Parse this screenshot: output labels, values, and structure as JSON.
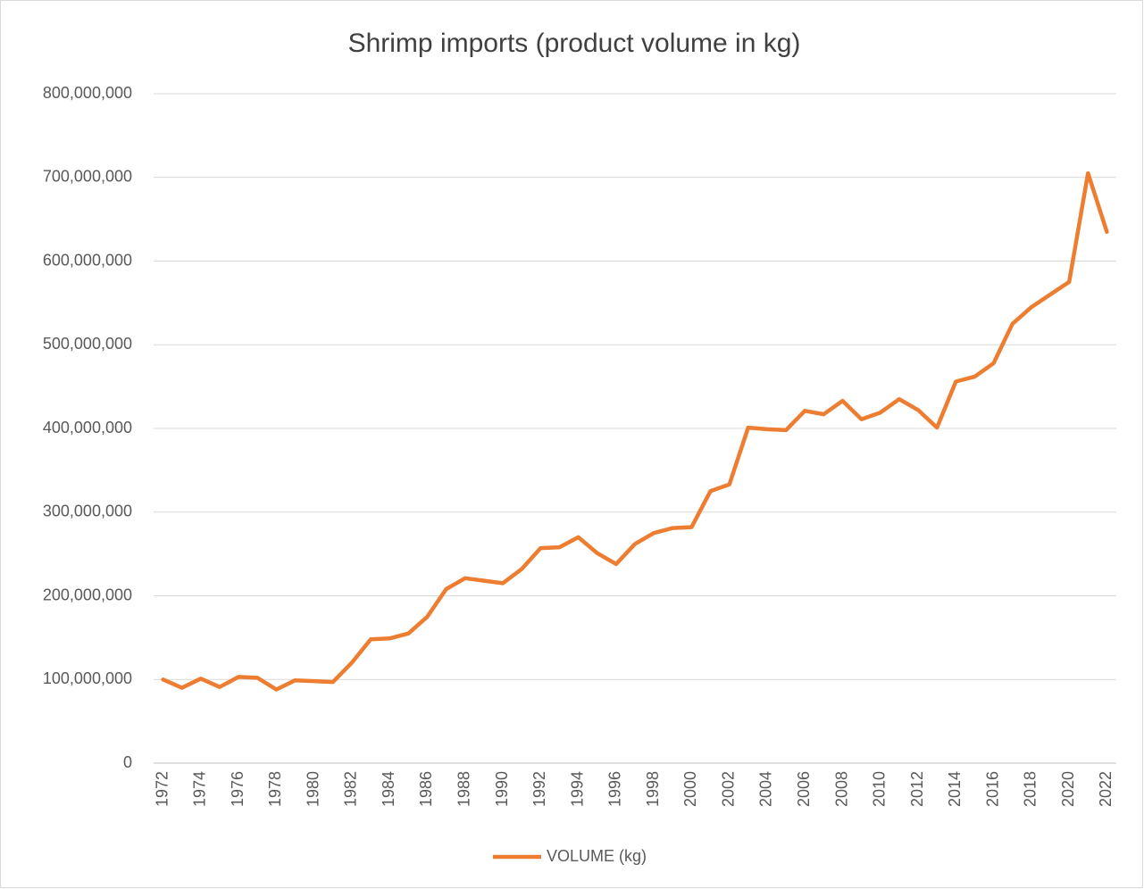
{
  "chart_data": {
    "type": "line",
    "title": "Shrimp imports (product volume in kg)",
    "categories": [
      "1972",
      null,
      "1974",
      null,
      "1976",
      null,
      "1978",
      null,
      "1980",
      null,
      "1982",
      null,
      "1984",
      null,
      "1986",
      null,
      "1988",
      null,
      "1990",
      null,
      "1992",
      null,
      "1994",
      null,
      "1996",
      null,
      "1998",
      null,
      "2000",
      null,
      "2002",
      null,
      "2004",
      null,
      "2006",
      null,
      "2008",
      null,
      "2010",
      null,
      "2012",
      null,
      "2014",
      null,
      "2016",
      null,
      "2018",
      null,
      "2020",
      null,
      "2022"
    ],
    "series": [
      {
        "name": "VOLUME (kg)",
        "color": "#ed7d31",
        "values": [
          100000000,
          90000000,
          101000000,
          91000000,
          103000000,
          102000000,
          88000000,
          99000000,
          98000000,
          97000000,
          120000000,
          148000000,
          149000000,
          155000000,
          175000000,
          208000000,
          221000000,
          218000000,
          215000000,
          232000000,
          257000000,
          258000000,
          270000000,
          251000000,
          238000000,
          262000000,
          275000000,
          281000000,
          282000000,
          325000000,
          333000000,
          401000000,
          399000000,
          398000000,
          421000000,
          417000000,
          433000000,
          411000000,
          419000000,
          435000000,
          422000000,
          401000000,
          456000000,
          462000000,
          478000000,
          525000000,
          545000000,
          560000000,
          575000000,
          705000000,
          635000000
        ]
      }
    ],
    "ylim": [
      0,
      800000000
    ],
    "yticks": [
      0,
      {
        "value": 100000000,
        "label": "100,000,000"
      },
      {
        "value": 200000000,
        "label": "200,000,000"
      },
      {
        "value": 300000000,
        "label": "300,000,000"
      },
      {
        "value": 400000000,
        "label": "400,000,000"
      },
      {
        "value": 500000000,
        "label": "500,000,000"
      },
      {
        "value": 600000000,
        "label": "600,000,000"
      },
      {
        "value": 700000000,
        "label": "700,000,000"
      },
      {
        "value": 800000000,
        "label": "800,000,000"
      }
    ],
    "grid": true,
    "legend": "bottom"
  }
}
